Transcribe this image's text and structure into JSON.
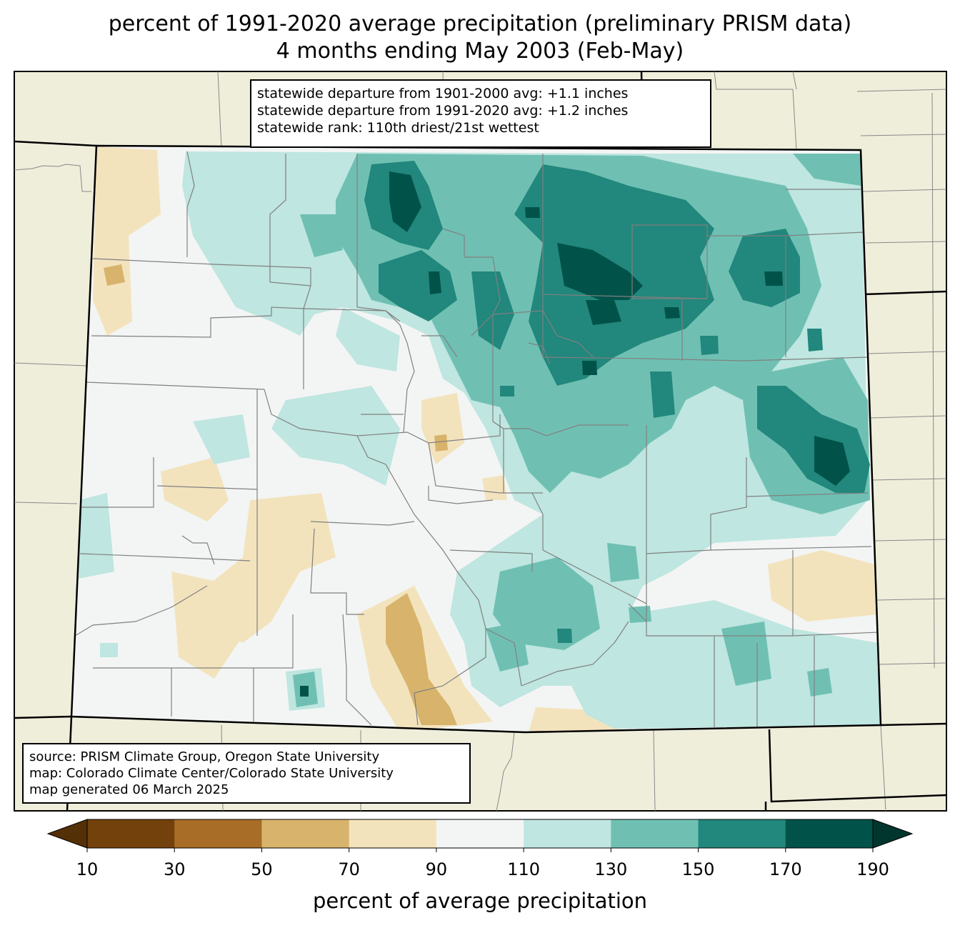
{
  "title_line1": "percent of 1991-2020 average precipitation (preliminary PRISM data)",
  "title_line2": "4 months ending May 2003 (Feb-May)",
  "stats": [
    "statewide departure from 1901-2000 avg: +1.1 inches",
    "statewide departure from 1991-2020 avg: +1.2 inches",
    "statewide rank: 110th driest/21st wettest"
  ],
  "source": [
    "source: PRISM Climate Group, Oregon State University",
    "map: Colorado Climate Center/Colorado State University",
    "map generated 06 March 2025"
  ],
  "colorbar": {
    "label": "percent of average precipitation",
    "ticks": [
      "10",
      "30",
      "50",
      "70",
      "90",
      "110",
      "130",
      "150",
      "170",
      "190"
    ],
    "bin_colors": [
      "#73410b",
      "#a86d26",
      "#d8b36b",
      "#f3e3bd",
      "#f3f5f4",
      "#bfe6e0",
      "#6fc0b3",
      "#22877c",
      "#01534a"
    ],
    "under_color": "#533006",
    "over_color": "#01362f"
  },
  "colors": {
    "land_outside": "#efeedb",
    "state_fill": "#f3f5f4"
  }
}
